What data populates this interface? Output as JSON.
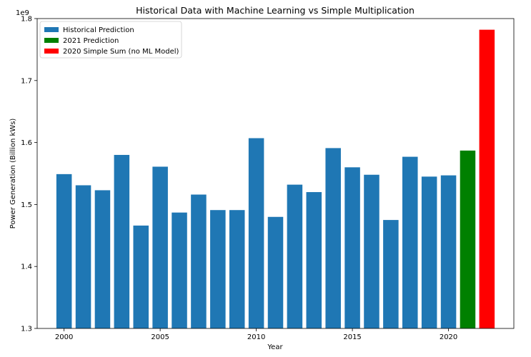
{
  "chart_data": {
    "type": "bar",
    "title": "Historical Data with Machine Learning vs Simple Multiplication",
    "xlabel": "Year",
    "ylabel": "Power Generation (Billion kWs)",
    "y_offset_label": "1e9",
    "ylim": [
      1.3,
      1.8
    ],
    "xlim": [
      1998.6,
      2023.4
    ],
    "x_ticks": [
      2000,
      2005,
      2010,
      2015,
      2020
    ],
    "y_ticks": [
      1.3,
      1.4,
      1.5,
      1.6,
      1.7,
      1.8
    ],
    "grid": false,
    "legend_position": "top-left",
    "series": [
      {
        "name": "Historical Prediction",
        "color": "#1f77b4",
        "x": [
          2000,
          2001,
          2002,
          2003,
          2004,
          2005,
          2006,
          2007,
          2008,
          2009,
          2010,
          2011,
          2012,
          2013,
          2014,
          2015,
          2016,
          2017,
          2018,
          2019,
          2020
        ],
        "values": [
          1.549,
          1.531,
          1.523,
          1.58,
          1.466,
          1.561,
          1.487,
          1.516,
          1.491,
          1.491,
          1.607,
          1.48,
          1.532,
          1.52,
          1.591,
          1.56,
          1.548,
          1.475,
          1.577,
          1.545,
          1.547
        ]
      },
      {
        "name": "2021 Prediction",
        "color": "#008000",
        "x": [
          2021
        ],
        "values": [
          1.587
        ]
      },
      {
        "name": "2020 Simple Sum (no ML Model)",
        "color": "#ff0000",
        "x": [
          2022
        ],
        "values": [
          1.782
        ]
      }
    ]
  }
}
